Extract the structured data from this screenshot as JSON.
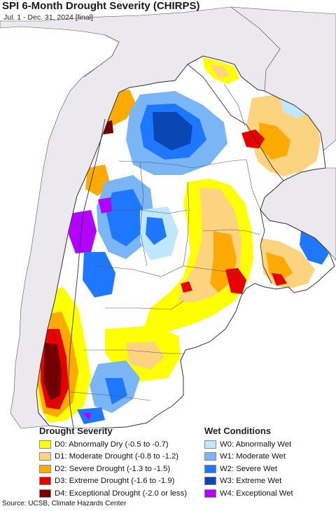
{
  "title": "SPI 6-Month Drought Severity (CHIRPS)",
  "subtitle": "Jul. 1 - Dec. 31, 2024 [final]",
  "drought_legend": {
    "title": "Drought Severity",
    "items": [
      {
        "label": "D0: Abnormally Dry (-0.5 to -0.7)",
        "color": "#ffff00"
      },
      {
        "label": "D1: Moderate Drought (-0.8 to -1.2)",
        "color": "#fcd37f"
      },
      {
        "label": "D2: Severe Drought (-1.3 to -1.5)",
        "color": "#ffaa00"
      },
      {
        "label": "D3: Extreme Drought (-1.6 to -1.9)",
        "color": "#e60000"
      },
      {
        "label": "D4: Exceptional Drought (-2.0 or less)",
        "color": "#730000"
      }
    ]
  },
  "wet_legend": {
    "title": "Wet Conditions",
    "items": [
      {
        "label": "W0: Abnormally Wet",
        "color": "#bfe8ff"
      },
      {
        "label": "W1: Moderate Wet",
        "color": "#7ab6f5"
      },
      {
        "label": "W2: Severe Wet",
        "color": "#1e78ff"
      },
      {
        "label": "W3: Extreme Wet",
        "color": "#0a46b4"
      },
      {
        "label": "W4: Exceptional Wet",
        "color": "#b400ff"
      }
    ]
  },
  "source": "Source: UCSB, Climate Hazards Center",
  "colors": {
    "ocean": "#ffffff",
    "neighbor_land": "#ece9ee",
    "normal_land": "#ffffff",
    "borders": "#444444"
  }
}
